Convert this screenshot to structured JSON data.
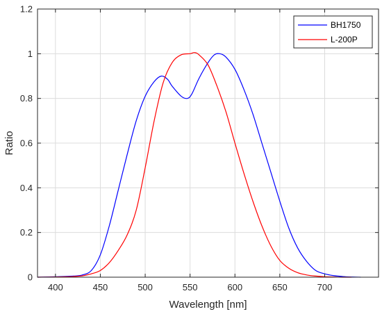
{
  "chart_data": {
    "type": "line",
    "title": "",
    "xlabel": "Wavelength [nm]",
    "ylabel": "Ratio",
    "xlim": [
      380,
      760
    ],
    "ylim": [
      0,
      1.2
    ],
    "xticks": [
      400,
      450,
      500,
      550,
      600,
      650,
      700
    ],
    "yticks": [
      0,
      0.2,
      0.4,
      0.6,
      0.8,
      1,
      1.2
    ],
    "xtick_labels": [
      "400",
      "450",
      "500",
      "550",
      "600",
      "650",
      "700"
    ],
    "ytick_labels": [
      "0",
      "0.2",
      "0.4",
      "0.6",
      "0.8",
      "1",
      "1.2"
    ],
    "grid": true,
    "legend_position": "top-right",
    "series": [
      {
        "name": "BH1750",
        "color": "#0000ff",
        "x": [
          380,
          400,
          420,
          430,
          440,
          450,
          460,
          470,
          480,
          490,
          500,
          510,
          518,
          525,
          530,
          540,
          547,
          552,
          560,
          570,
          577,
          583,
          590,
          600,
          610,
          620,
          630,
          640,
          650,
          660,
          670,
          680,
          690,
          700,
          710,
          720,
          730,
          740
        ],
        "y": [
          0,
          0.002,
          0.005,
          0.01,
          0.03,
          0.1,
          0.23,
          0.39,
          0.55,
          0.7,
          0.81,
          0.875,
          0.9,
          0.885,
          0.855,
          0.81,
          0.8,
          0.82,
          0.89,
          0.96,
          0.995,
          1.0,
          0.985,
          0.93,
          0.84,
          0.73,
          0.6,
          0.47,
          0.34,
          0.22,
          0.13,
          0.07,
          0.03,
          0.015,
          0.007,
          0.003,
          0.001,
          0
        ]
      },
      {
        "name": "L-200P",
        "color": "#ff0000",
        "x": [
          380,
          400,
          420,
          430,
          440,
          450,
          460,
          470,
          480,
          490,
          500,
          510,
          520,
          530,
          540,
          550,
          555,
          560,
          570,
          580,
          590,
          600,
          610,
          620,
          630,
          640,
          650,
          660,
          670,
          680,
          690,
          700,
          710,
          720,
          730
        ],
        "y": [
          0,
          0.001,
          0.003,
          0.006,
          0.015,
          0.03,
          0.065,
          0.12,
          0.19,
          0.3,
          0.49,
          0.7,
          0.87,
          0.96,
          0.995,
          1.0,
          1.005,
          0.995,
          0.95,
          0.855,
          0.74,
          0.6,
          0.465,
          0.34,
          0.23,
          0.14,
          0.075,
          0.04,
          0.02,
          0.01,
          0.005,
          0.002,
          0.001,
          0,
          0
        ]
      }
    ]
  }
}
